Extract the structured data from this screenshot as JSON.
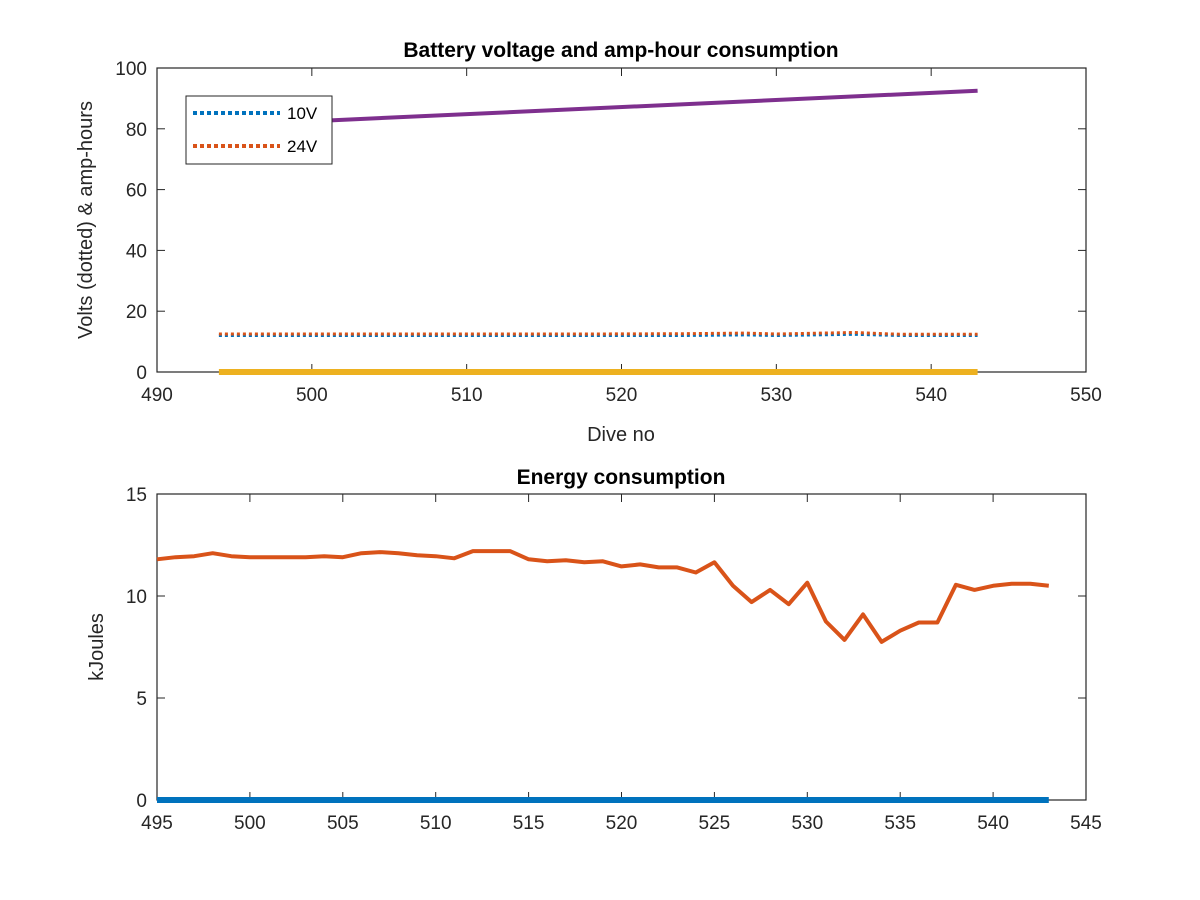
{
  "chart_data": [
    {
      "type": "line",
      "title": "Battery voltage and amp-hour consumption",
      "xlabel": "Dive no",
      "ylabel": "Volts (dotted) & amp-hours",
      "xlim": [
        490,
        550
      ],
      "ylim": [
        0,
        100
      ],
      "xticks": [
        490,
        500,
        510,
        520,
        530,
        540,
        550
      ],
      "yticks": [
        0,
        20,
        40,
        60,
        80,
        100
      ],
      "grid": false,
      "legend": {
        "placement": "top-left",
        "entries": [
          "10V",
          "24V"
        ]
      },
      "series": [
        {
          "name": "10V",
          "style": "dotted",
          "color": "#0072BD",
          "x": [
            494,
            500,
            506,
            512,
            518,
            524,
            528,
            530,
            535,
            538,
            543
          ],
          "y": [
            12.0,
            12.0,
            12.0,
            12.0,
            12.0,
            12.0,
            12.2,
            12.0,
            12.4,
            12.0,
            12.0
          ]
        },
        {
          "name": "24V",
          "style": "dotted",
          "color": "#D95319",
          "x": [
            494,
            500,
            506,
            512,
            518,
            524,
            528,
            530,
            535,
            538,
            543
          ],
          "y": [
            12.5,
            12.5,
            12.5,
            12.5,
            12.5,
            12.6,
            12.8,
            12.5,
            13.0,
            12.4,
            12.4
          ]
        },
        {
          "style": "solid",
          "color": "#7E2F8E",
          "x": [
            500,
            543
          ],
          "y": [
            82.5,
            92.5
          ]
        },
        {
          "style": "solid",
          "color": "#EDB120",
          "x": [
            494,
            543
          ],
          "y": [
            0,
            0
          ]
        }
      ]
    },
    {
      "type": "line",
      "title": "Energy consumption",
      "xlabel": "",
      "ylabel": "kJoules",
      "xlim": [
        495,
        545
      ],
      "ylim": [
        0,
        15
      ],
      "xticks": [
        495,
        500,
        505,
        510,
        515,
        520,
        525,
        530,
        535,
        540,
        545
      ],
      "yticks": [
        0,
        5,
        10,
        15
      ],
      "grid": false,
      "series": [
        {
          "style": "solid",
          "color": "#D95319",
          "x": [
            495,
            496,
            497,
            498,
            499,
            500,
            501,
            502,
            503,
            504,
            505,
            506,
            507,
            508,
            509,
            510,
            511,
            512,
            513,
            514,
            515,
            516,
            517,
            518,
            519,
            520,
            521,
            522,
            523,
            524,
            525,
            526,
            527,
            528,
            529,
            530,
            531,
            532,
            533,
            534,
            535,
            536,
            537,
            538,
            539,
            540,
            541,
            542,
            543
          ],
          "y": [
            11.8,
            11.9,
            11.95,
            12.1,
            11.95,
            11.9,
            11.9,
            11.9,
            11.9,
            11.95,
            11.9,
            12.1,
            12.15,
            12.1,
            12.0,
            11.95,
            11.85,
            12.2,
            12.2,
            12.2,
            11.8,
            11.7,
            11.75,
            11.65,
            11.7,
            11.45,
            11.55,
            11.4,
            11.4,
            11.15,
            11.65,
            10.5,
            9.7,
            10.3,
            9.6,
            10.65,
            8.75,
            7.85,
            9.1,
            7.75,
            8.3,
            8.7,
            8.7,
            10.55,
            10.3,
            10.5,
            10.6,
            10.6,
            10.5
          ]
        },
        {
          "style": "solid",
          "color": "#0072BD",
          "x": [
            495,
            543
          ],
          "y": [
            0,
            0
          ]
        }
      ]
    }
  ]
}
